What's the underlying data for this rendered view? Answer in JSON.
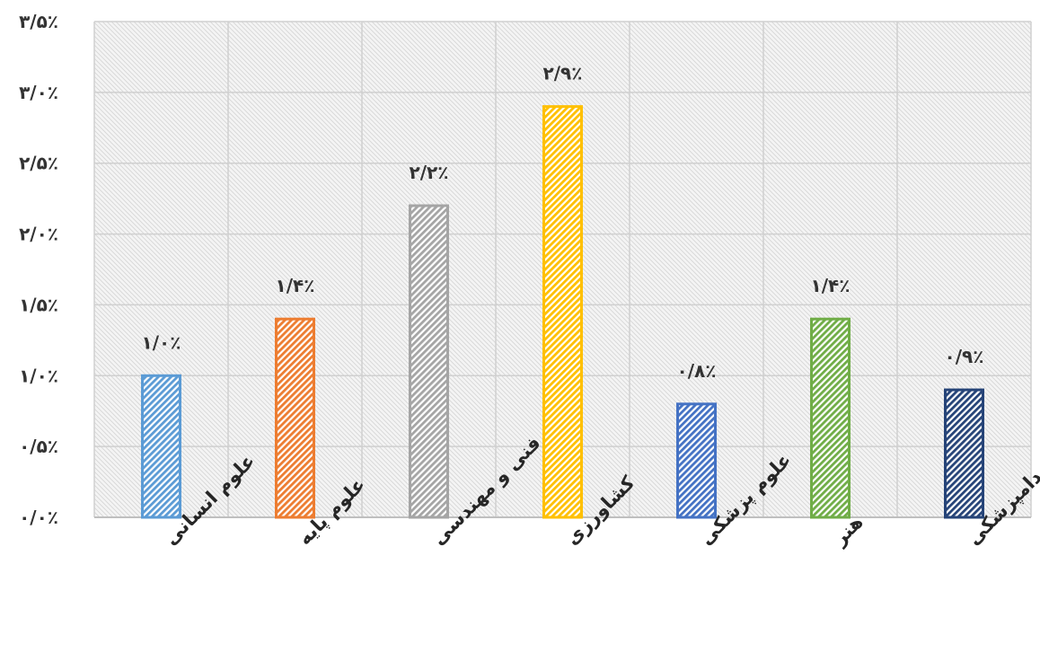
{
  "chart_data": {
    "type": "bar",
    "categories": [
      "علوم انسانی",
      "علوم پایه",
      "فنی و مهندسی",
      "کشاورزی",
      "علوم پزشکی",
      "هنر",
      "دامپزشکی"
    ],
    "values": [
      1.0,
      1.4,
      2.2,
      2.9,
      0.8,
      1.4,
      0.9
    ],
    "data_labels": [
      "۱/۰٪",
      "۱/۴٪",
      "۲/۲٪",
      "۲/۹٪",
      "۰/۸٪",
      "۱/۴٪",
      "۰/۹٪"
    ],
    "y_tick_values": [
      0,
      0.5,
      1.0,
      1.5,
      2.0,
      2.5,
      3.0,
      3.5
    ],
    "y_tick_labels": [
      "۰/۰٪",
      "۰/۵٪",
      "۱/۰٪",
      "۱/۵٪",
      "۲/۰٪",
      "۲/۵٪",
      "۳/۰٪",
      "۳/۵٪"
    ],
    "ylim": [
      0,
      3.5
    ],
    "title": "",
    "xlabel": "",
    "ylabel": "",
    "grid": true,
    "bar_colors": [
      "#5B9BD5",
      "#ED7D31",
      "#A5A5A5",
      "#FFC000",
      "#4472C4",
      "#70AD47",
      "#264478"
    ],
    "bar_fill": "diagonal-hatch",
    "plot_background": "light-gray-hatch"
  }
}
